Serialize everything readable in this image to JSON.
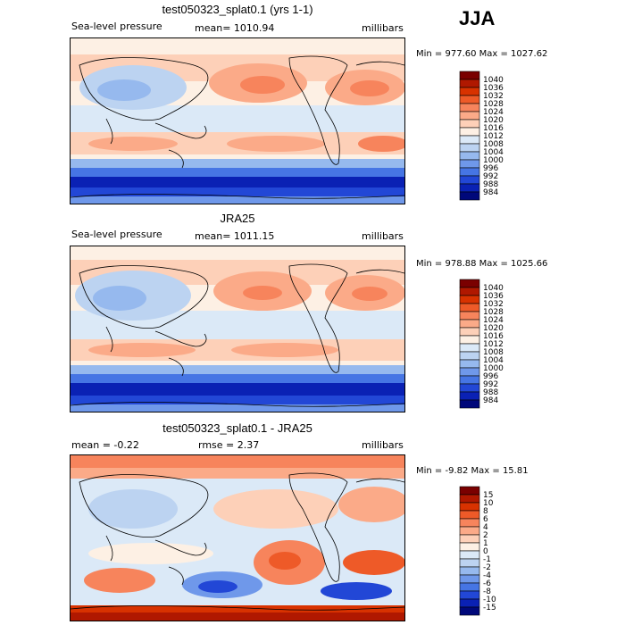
{
  "season": "JJA",
  "panels": [
    {
      "title": "test050323_splat0.1 (yrs 1-1)",
      "left_label": "Sea-level pressure",
      "center_label": "mean= 1010.94",
      "right_label": "millibars",
      "minmax": "Min = 977.60 Max = 1027.62",
      "legend_kind": "abs"
    },
    {
      "title": "JRA25",
      "left_label": "Sea-level pressure",
      "center_label": "mean= 1011.15",
      "right_label": "millibars",
      "minmax": "Min = 978.88 Max = 1025.66",
      "legend_kind": "abs"
    },
    {
      "title": "test050323_splat0.1 - JRA25",
      "left_label": "mean =   -0.22",
      "center_label": "rmse =    2.37",
      "right_label": "millibars",
      "minmax": "Min =  -9.82 Max =  15.81",
      "legend_kind": "diff"
    }
  ],
  "chart_data": [
    {
      "type": "heatmap",
      "title": "test050323_splat0.1 (yrs 1-1)",
      "variable": "Sea-level pressure",
      "units": "millibars",
      "mean": 1010.94,
      "min": 977.6,
      "max": 1027.62,
      "colorbar_levels": [
        984,
        988,
        992,
        996,
        1000,
        1004,
        1008,
        1012,
        1016,
        1020,
        1024,
        1028,
        1032,
        1036,
        1040
      ]
    },
    {
      "type": "heatmap",
      "title": "JRA25",
      "variable": "Sea-level pressure",
      "units": "millibars",
      "mean": 1011.15,
      "min": 978.88,
      "max": 1025.66,
      "colorbar_levels": [
        984,
        988,
        992,
        996,
        1000,
        1004,
        1008,
        1012,
        1016,
        1020,
        1024,
        1028,
        1032,
        1036,
        1040
      ]
    },
    {
      "type": "heatmap",
      "title": "test050323_splat0.1 - JRA25",
      "units": "millibars",
      "mean": -0.22,
      "rmse": 2.37,
      "min": -9.82,
      "max": 15.81,
      "colorbar_levels": [
        -15,
        -10,
        -8,
        -6,
        -4,
        -2,
        -1,
        0,
        1,
        2,
        4,
        6,
        8,
        10,
        15
      ]
    }
  ],
  "legends": {
    "abs": {
      "labels": [
        "1040",
        "1036",
        "1032",
        "1028",
        "1024",
        "1020",
        "1016",
        "1012",
        "1008",
        "1004",
        "1000",
        "996",
        "992",
        "988",
        "984"
      ],
      "colors": [
        "#7a0000",
        "#b01800",
        "#d83200",
        "#ee5a28",
        "#f7845c",
        "#fbaa88",
        "#fdd0b8",
        "#fdf0e4",
        "#dbe9f7",
        "#bcd3f1",
        "#96b9ee",
        "#6f98ea",
        "#4675e4",
        "#2247d6",
        "#0a21b4",
        "#00087a"
      ]
    },
    "diff": {
      "labels": [
        "15",
        "10",
        "8",
        "6",
        "4",
        "2",
        "1",
        "0",
        "-1",
        "-2",
        "-4",
        "-6",
        "-8",
        "-10",
        "-15"
      ],
      "colors": [
        "#7a0000",
        "#b01800",
        "#d83200",
        "#ee5a28",
        "#f7845c",
        "#fbaa88",
        "#fdd0b8",
        "#fdf0e4",
        "#dbe9f7",
        "#bcd3f1",
        "#96b9ee",
        "#6f98ea",
        "#4675e4",
        "#2247d6",
        "#0a21b4",
        "#00087a"
      ]
    }
  }
}
